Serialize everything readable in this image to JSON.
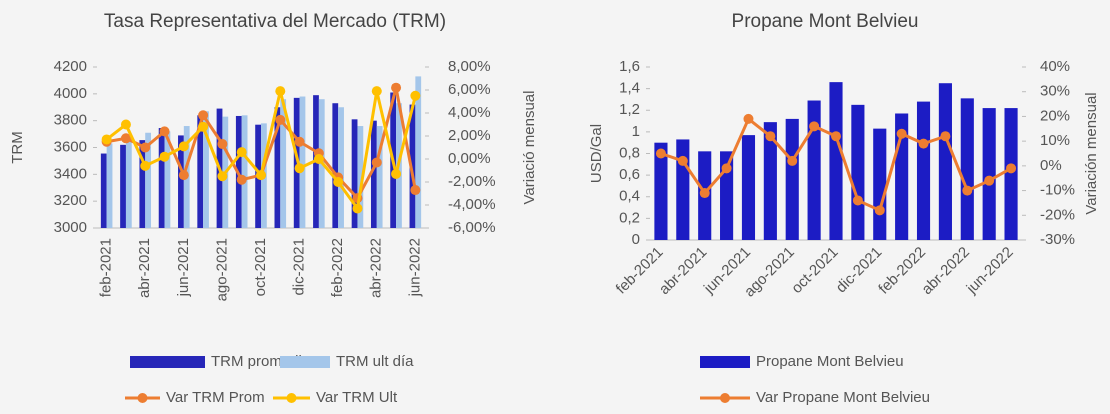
{
  "chart_data": [
    {
      "type": "combo",
      "title": "Tasa Representativa del Mercado (TRM)",
      "y_label": "TRM",
      "y2_label": "Variació mensual",
      "categories": [
        "feb-2021",
        null,
        "abr-2021",
        null,
        "jun-2021",
        null,
        "ago-2021",
        null,
        "oct-2021",
        null,
        "dic-2021",
        null,
        "feb-2022",
        null,
        "abr-2022",
        null,
        "jun-2022"
      ],
      "ylim": [
        3000,
        4200
      ],
      "yticks": [
        3000,
        3200,
        3400,
        3600,
        3800,
        4000,
        4200
      ],
      "y2lim": [
        -6,
        8
      ],
      "y2ticks": [
        {
          "value": -6,
          "label": "-6,00%"
        },
        {
          "value": -4,
          "label": "-4,00%"
        },
        {
          "value": -2,
          "label": "-2,00%"
        },
        {
          "value": 0,
          "label": "0,00%"
        },
        {
          "value": 2,
          "label": "2,00%"
        },
        {
          "value": 4,
          "label": "4,00%"
        },
        {
          "value": 6,
          "label": "6,00%"
        },
        {
          "value": 8,
          "label": "8,00%"
        }
      ],
      "legend": "bottom",
      "series": [
        {
          "name": "TRM promedio",
          "type": "bar",
          "color": "#2626b8",
          "values": [
            3555,
            3620,
            3655,
            3745,
            3690,
            3840,
            3890,
            3835,
            3770,
            3900,
            3970,
            3990,
            3930,
            3810,
            3800,
            4010,
            3920
          ]
        },
        {
          "name": "TRM ult día",
          "type": "bar",
          "color": "#a4c6ea",
          "values": [
            3630,
            3680,
            3710,
            3720,
            3760,
            3870,
            3830,
            3840,
            3780,
            3960,
            3980,
            3960,
            3900,
            3760,
            3760,
            3930,
            4130
          ]
        },
        {
          "name": "Var TRM Prom",
          "type": "line",
          "axis": "y2",
          "color": "#ed7d31",
          "values": [
            1.5,
            1.8,
            1.0,
            2.4,
            -1.4,
            3.8,
            1.3,
            -1.8,
            -1.4,
            3.4,
            1.5,
            0.5,
            -1.6,
            -3.4,
            -0.3,
            6.2,
            -2.7
          ]
        },
        {
          "name": "Var TRM Ult",
          "type": "line",
          "axis": "y2",
          "color": "#ffc000",
          "values": [
            1.7,
            3.0,
            -0.6,
            0.2,
            1.1,
            2.8,
            -1.5,
            0.6,
            -1.4,
            5.9,
            -0.8,
            0.0,
            -2.0,
            -4.3,
            5.9,
            -1.3,
            5.5
          ]
        }
      ]
    },
    {
      "type": "combo",
      "title": "Propane Mont Belvieu",
      "y_label": "USD/Gal",
      "y2_label": "Variación mensual",
      "categories": [
        "feb-2021",
        null,
        "abr-2021",
        null,
        "jun-2021",
        null,
        "ago-2021",
        null,
        "oct-2021",
        null,
        "dic-2021",
        null,
        "feb-2022",
        null,
        "abr-2022",
        null,
        "jun-2022"
      ],
      "ylim": [
        0,
        1.6
      ],
      "yticks": [
        0,
        {
          "value": 0.2,
          "label": "0,2"
        },
        {
          "value": 0.4,
          "label": "0,4"
        },
        {
          "value": 0.6,
          "label": "0,6"
        },
        {
          "value": 0.8,
          "label": "0,8"
        },
        1,
        {
          "value": 1.2,
          "label": "1,2"
        },
        {
          "value": 1.4,
          "label": "1,4"
        },
        {
          "value": 1.6,
          "label": "1,6"
        }
      ],
      "y2lim": [
        -30,
        40
      ],
      "y2ticks": [
        {
          "value": -30,
          "label": "-30%"
        },
        {
          "value": -20,
          "label": "-20%"
        },
        {
          "value": -10,
          "label": "-10%"
        },
        {
          "value": 0,
          "label": "0%"
        },
        {
          "value": 10,
          "label": "10%"
        },
        {
          "value": 20,
          "label": "20%"
        },
        {
          "value": 30,
          "label": "30%"
        },
        {
          "value": 40,
          "label": "40%"
        }
      ],
      "legend": "bottom",
      "series": [
        {
          "name": "Propane Mont Belvieu",
          "type": "bar",
          "color": "#1c1cc4",
          "values": [
            0.9,
            0.93,
            0.82,
            0.82,
            0.97,
            1.09,
            1.12,
            1.29,
            1.46,
            1.25,
            1.03,
            1.17,
            1.28,
            1.45,
            1.31,
            1.22,
            1.22
          ]
        },
        {
          "name": "Var Propane Mont Belvieu",
          "type": "line",
          "axis": "y2",
          "color": "#ed7d31",
          "values": [
            5,
            2,
            -11,
            -1,
            19,
            12,
            2,
            16,
            12,
            -14,
            -18,
            13,
            9,
            12,
            -10,
            -6,
            -1
          ]
        }
      ]
    }
  ]
}
